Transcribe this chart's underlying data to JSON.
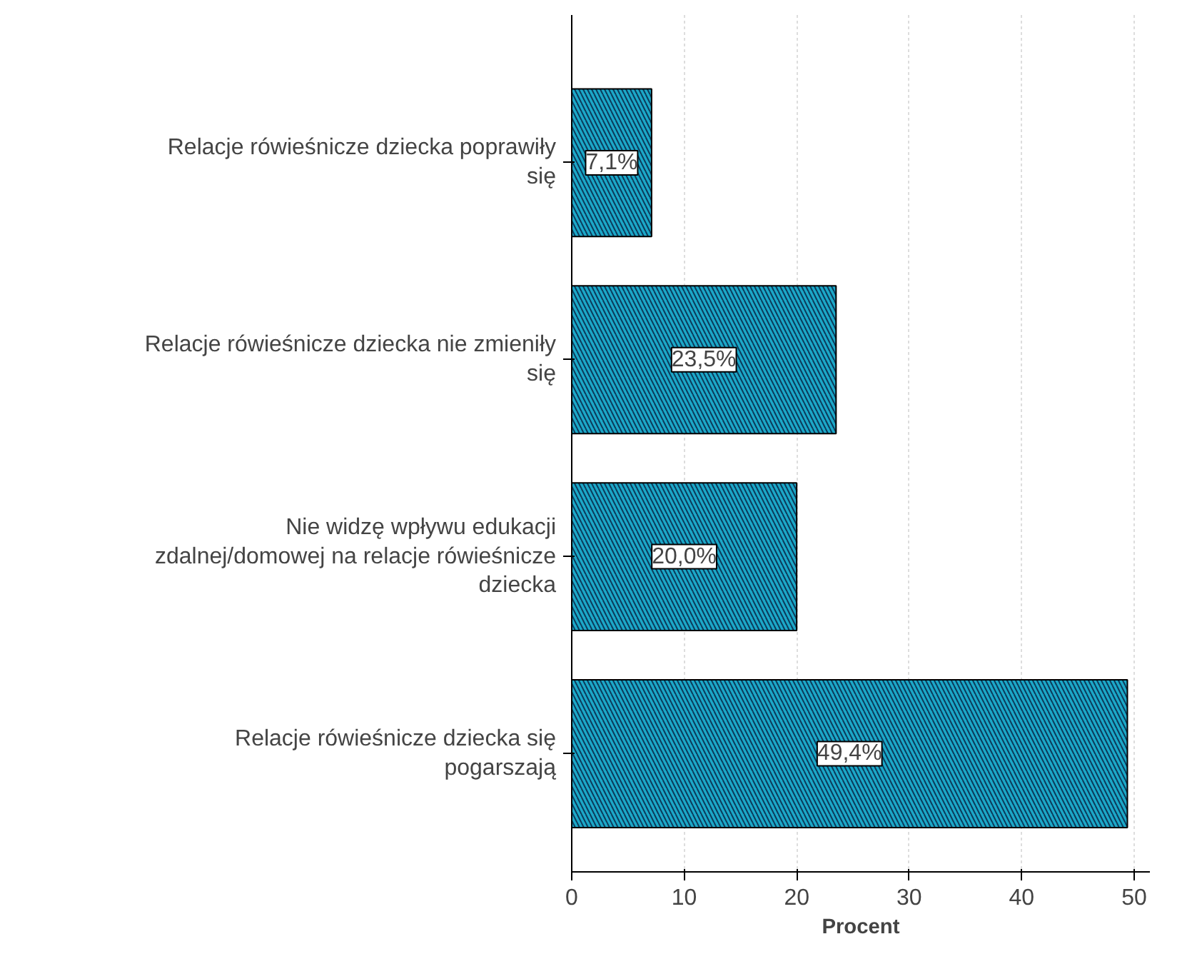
{
  "chart_data": {
    "type": "bar",
    "orientation": "horizontal",
    "xlabel": "Procent",
    "categories": [
      "Relacje rówieśnicze dziecka poprawiły się",
      "Relacje rówieśnicze dziecka nie zmieniły się",
      "Nie widzę wpływu edukacji zdalnej/domowej na relacje rówieśnicze dziecka",
      "Relacje rówieśnicze dziecka się pogarszają"
    ],
    "values": [
      7.1,
      23.5,
      20.0,
      49.4
    ],
    "value_labels": [
      "7,1%",
      "23,5%",
      "20,0%",
      "49,4%"
    ],
    "color": "#1ba8c8",
    "xlim": [
      0,
      51.4
    ],
    "xticks": [
      0,
      10,
      20,
      30,
      40,
      50
    ],
    "grid": "x"
  }
}
